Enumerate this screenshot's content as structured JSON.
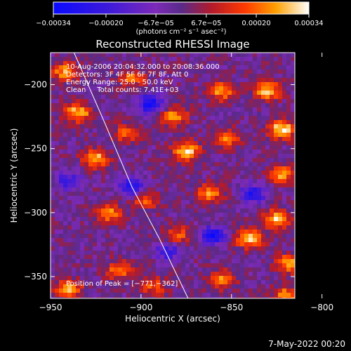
{
  "footer": {
    "timestamp": "7-May-2022 00:20"
  },
  "chart_data": {
    "type": "heatmap",
    "title": "Reconstructed RHESSI Image",
    "xlabel": "Heliocentric X (arcsec)",
    "ylabel": "Heliocentric Y (arcsec)",
    "xlim": [
      -950,
      -815
    ],
    "ylim": [
      -367,
      -175
    ],
    "x_ticks": [
      {
        "value": -950,
        "label": "−950"
      },
      {
        "value": -900,
        "label": "−900"
      },
      {
        "value": -850,
        "label": "−850"
      },
      {
        "value": -800,
        "label": "−800"
      }
    ],
    "y_ticks": [
      {
        "value": -200,
        "label": "−200"
      },
      {
        "value": -250,
        "label": "−250"
      },
      {
        "value": -300,
        "label": "−300"
      },
      {
        "value": -350,
        "label": "−350"
      }
    ],
    "colorbar": {
      "range": [
        -0.00034,
        0.00034
      ],
      "ticks": [
        {
          "value": -0.00034,
          "label": "−0.00034"
        },
        {
          "value": -0.0002,
          "label": "−0.00020"
        },
        {
          "value": -6.7e-05,
          "label": "−6.7e−05"
        },
        {
          "value": 6.7e-05,
          "label": "6.7e−05"
        },
        {
          "value": 0.0002,
          "label": "0.00020"
        },
        {
          "value": 0.00034,
          "label": "0.00034"
        }
      ],
      "unit_label": "(photons cm⁻² s⁻¹ asec⁻²)"
    },
    "annotations": [
      "10-Aug-2006 20:04:32.000 to 20:08:36.000",
      "Detectors: 3F 4F 5F 6F 7F 8F, Att 0",
      "Energy Range: 25.0 - 50.0 keV",
      "Clean     Total counts: 7.41E+03"
    ],
    "peak_label": "Position of Peak = [−771,−362]",
    "limb_curve": [
      [
        -937,
        -175
      ],
      [
        -920,
        -230
      ],
      [
        -905,
        -280
      ],
      [
        -890,
        -320
      ],
      [
        -874,
        -367
      ]
    ],
    "bright_sources": [
      {
        "x": -942,
        "y": -190,
        "v": 0.00025
      },
      {
        "x": -935,
        "y": -222,
        "v": 0.0003
      },
      {
        "x": -925,
        "y": -258,
        "v": 0.00028
      },
      {
        "x": -918,
        "y": -300,
        "v": 0.00024
      },
      {
        "x": -912,
        "y": -345,
        "v": 0.00022
      },
      {
        "x": -940,
        "y": -360,
        "v": 0.00026
      },
      {
        "x": -882,
        "y": -225,
        "v": 0.00026
      },
      {
        "x": -875,
        "y": -252,
        "v": 0.00031
      },
      {
        "x": -862,
        "y": -285,
        "v": 0.00023
      },
      {
        "x": -880,
        "y": -318,
        "v": 0.0002
      },
      {
        "x": -893,
        "y": -358,
        "v": 0.00018
      },
      {
        "x": -855,
        "y": -205,
        "v": 0.00026
      },
      {
        "x": -852,
        "y": -242,
        "v": 0.00021
      },
      {
        "x": -840,
        "y": -320,
        "v": 0.00034
      },
      {
        "x": -855,
        "y": -352,
        "v": 0.00022
      },
      {
        "x": -830,
        "y": -205,
        "v": 0.0003
      },
      {
        "x": -822,
        "y": -235,
        "v": 0.00034
      },
      {
        "x": -822,
        "y": -270,
        "v": 0.00025
      },
      {
        "x": -825,
        "y": -305,
        "v": 0.00028
      },
      {
        "x": -818,
        "y": -340,
        "v": 0.00026
      },
      {
        "x": -820,
        "y": -365,
        "v": 0.00024
      },
      {
        "x": -905,
        "y": -195,
        "v": 0.0002
      },
      {
        "x": -908,
        "y": -238,
        "v": 0.00018
      },
      {
        "x": -898,
        "y": -290,
        "v": 0.00021
      }
    ],
    "dim_regions": [
      {
        "x": -895,
        "y": -215,
        "v": -0.0003
      },
      {
        "x": -905,
        "y": -280,
        "v": -0.00028
      },
      {
        "x": -860,
        "y": -318,
        "v": -0.0003
      },
      {
        "x": -838,
        "y": -285,
        "v": -0.00025
      },
      {
        "x": -885,
        "y": -330,
        "v": -0.00022
      },
      {
        "x": -940,
        "y": -275,
        "v": -0.0002
      }
    ]
  }
}
